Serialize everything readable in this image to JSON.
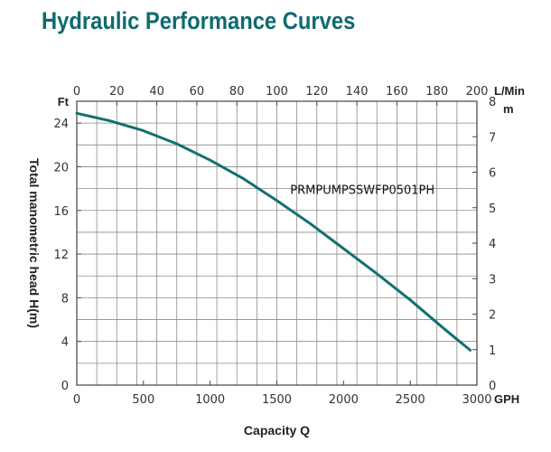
{
  "header": {
    "title": "Hydraulic Performance Curves"
  },
  "chart_data": {
    "type": "line",
    "title": "Hydraulic Performance Curves",
    "xlabel": "Capacity Q",
    "ylabel": "Total manometric head H(m)",
    "x_unit": "GPH",
    "y_unit": "Ft",
    "top_unit": "L/Min",
    "right_unit": "m",
    "xlim": [
      0,
      3000
    ],
    "ylim": [
      0,
      26
    ],
    "top_lim": [
      0,
      200
    ],
    "right_lim": [
      0,
      8
    ],
    "x_ticks": [
      "0",
      "500",
      "1000",
      "1500",
      "2000",
      "2500",
      "3000"
    ],
    "y_ticks": [
      "0",
      "4",
      "8",
      "12",
      "16",
      "20",
      "24"
    ],
    "top_ticks": [
      "0",
      "20",
      "40",
      "60",
      "80",
      "100",
      "120",
      "140",
      "160",
      "180",
      "200"
    ],
    "right_ticks": [
      "0",
      "1",
      "2",
      "3",
      "4",
      "5",
      "6",
      "7",
      "8"
    ],
    "grid": true,
    "series": [
      {
        "name": "PRMPUMPSSWFP0501PH",
        "color": "#13706f",
        "x": [
          0,
          250,
          500,
          750,
          1000,
          1250,
          1500,
          1750,
          2000,
          2250,
          2500,
          2750,
          2950
        ],
        "y": [
          24.9,
          24.2,
          23.3,
          22.1,
          20.6,
          18.9,
          16.9,
          14.8,
          12.5,
          10.2,
          7.8,
          5.2,
          3.2
        ]
      }
    ]
  }
}
